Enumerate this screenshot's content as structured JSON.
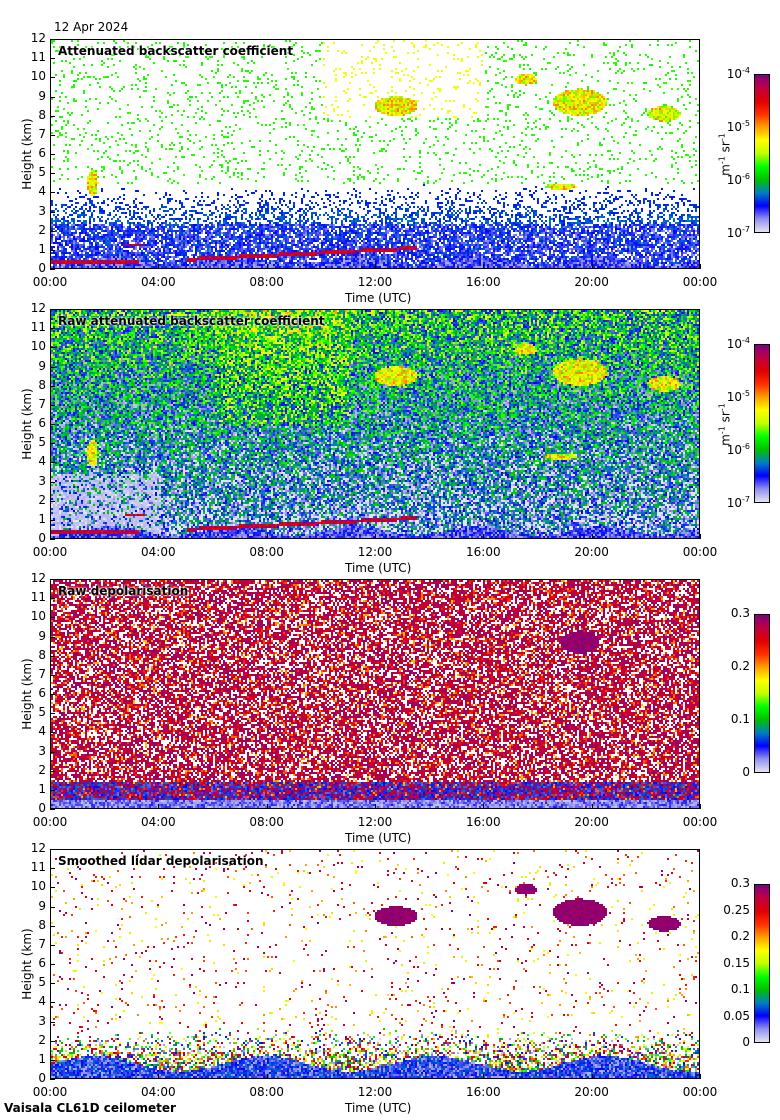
{
  "date": "12 Apr 2024",
  "footer": "Vaisala CL61D ceilometer",
  "colormap": [
    "#e4e4f0",
    "#9090f0",
    "#0000ff",
    "#0080c0",
    "#00c000",
    "#00ff00",
    "#c0ff00",
    "#ffff00",
    "#ffa000",
    "#ff3000",
    "#e00000",
    "#c00040",
    "#800080"
  ],
  "chart_data": [
    {
      "type": "heatmap",
      "title": "Attenuated backscatter coefficient",
      "xlabel": "Time (UTC)",
      "ylabel": "Height (km)",
      "xlim": [
        "00:00",
        "00:00"
      ],
      "ylim": [
        0,
        12
      ],
      "xticks": [
        "00:00",
        "04:00",
        "08:00",
        "12:00",
        "16:00",
        "20:00",
        "00:00"
      ],
      "yticks": [
        "0",
        "1",
        "2",
        "3",
        "4",
        "5",
        "6",
        "7",
        "8",
        "9",
        "10",
        "11",
        "12"
      ],
      "colorbar": {
        "scale": "log",
        "unit": "m-1 sr-1",
        "range": [
          1e-07,
          0.0001
        ],
        "ticks": [
          "10-7",
          "10-6",
          "10-5",
          "10-4"
        ]
      }
    },
    {
      "type": "heatmap",
      "title": "Raw attenuated backscatter coefficient",
      "xlabel": "Time (UTC)",
      "ylabel": "Height (km)",
      "xlim": [
        "00:00",
        "00:00"
      ],
      "ylim": [
        0,
        12
      ],
      "xticks": [
        "00:00",
        "04:00",
        "08:00",
        "12:00",
        "16:00",
        "20:00",
        "00:00"
      ],
      "yticks": [
        "0",
        "1",
        "2",
        "3",
        "4",
        "5",
        "6",
        "7",
        "8",
        "9",
        "10",
        "11",
        "12"
      ],
      "colorbar": {
        "scale": "log",
        "unit": "m-1 sr-1",
        "range": [
          1e-07,
          0.0001
        ],
        "ticks": [
          "10-7",
          "10-6",
          "10-5",
          "10-4"
        ]
      }
    },
    {
      "type": "heatmap",
      "title": "Raw depolarisation",
      "xlabel": "Time (UTC)",
      "ylabel": "Height (km)",
      "xlim": [
        "00:00",
        "00:00"
      ],
      "ylim": [
        0,
        12
      ],
      "xticks": [
        "00:00",
        "04:00",
        "08:00",
        "12:00",
        "16:00",
        "20:00",
        "00:00"
      ],
      "yticks": [
        "0",
        "1",
        "2",
        "3",
        "4",
        "5",
        "6",
        "7",
        "8",
        "9",
        "10",
        "11",
        "12"
      ],
      "colorbar": {
        "scale": "linear",
        "unit": "",
        "range": [
          0,
          0.3
        ],
        "ticks": [
          "0",
          "0.1",
          "0.2",
          "0.3"
        ]
      }
    },
    {
      "type": "heatmap",
      "title": "Smoothed lidar depolarisation",
      "xlabel": "Time (UTC)",
      "ylabel": "Height (km)",
      "xlim": [
        "00:00",
        "00:00"
      ],
      "ylim": [
        0,
        12
      ],
      "xticks": [
        "00:00",
        "04:00",
        "08:00",
        "12:00",
        "16:00",
        "20:00",
        "00:00"
      ],
      "yticks": [
        "0",
        "1",
        "2",
        "3",
        "4",
        "5",
        "6",
        "7",
        "8",
        "9",
        "10",
        "11",
        "12"
      ],
      "colorbar": {
        "scale": "linear",
        "unit": "",
        "range": [
          0,
          0.3
        ],
        "ticks": [
          "0",
          "0.05",
          "0.1",
          "0.15",
          "0.2",
          "0.25",
          "0.3"
        ]
      }
    }
  ]
}
